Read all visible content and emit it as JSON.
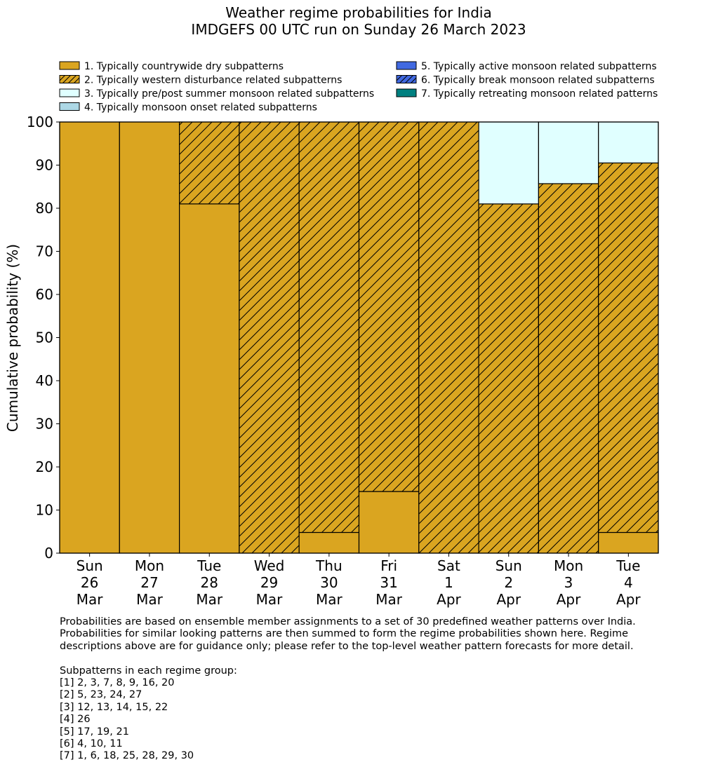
{
  "chart_data": {
    "type": "bar",
    "stacked": true,
    "title": "Weather regime probabilities for India",
    "subtitle": "IMDGEFS 00 UTC run on Sunday 26 March 2023",
    "ylabel": "Cumulative probability (%)",
    "xlabel": "",
    "ylim": [
      0,
      100
    ],
    "yticks": [
      0,
      10,
      20,
      30,
      40,
      50,
      60,
      70,
      80,
      90,
      100
    ],
    "categories": [
      [
        "Sun",
        "26",
        "Mar"
      ],
      [
        "Mon",
        "27",
        "Mar"
      ],
      [
        "Tue",
        "28",
        "Mar"
      ],
      [
        "Wed",
        "29",
        "Mar"
      ],
      [
        "Thu",
        "30",
        "Mar"
      ],
      [
        "Fri",
        "31",
        "Mar"
      ],
      [
        "Sat",
        "1",
        "Apr"
      ],
      [
        "Sun",
        "2",
        "Apr"
      ],
      [
        "Mon",
        "3",
        "Apr"
      ],
      [
        "Tue",
        "4",
        "Apr"
      ]
    ],
    "series": [
      {
        "name": "1. Typically countrywide dry subpatterns",
        "color": "#DAA520",
        "hatch": false,
        "values": [
          100,
          100,
          81,
          0,
          4.8,
          14.3,
          0,
          0,
          0,
          4.8
        ]
      },
      {
        "name": "2. Typically western disturbance related subpatterns",
        "color": "#DAA520",
        "hatch": true,
        "values": [
          0,
          0,
          19,
          100,
          95.2,
          85.7,
          100,
          81,
          85.7,
          85.7
        ]
      },
      {
        "name": "3. Typically pre/post summer monsoon related subpatterns",
        "color": "#E0FFFF",
        "hatch": false,
        "values": [
          0,
          0,
          0,
          0,
          0,
          0,
          0,
          19,
          14.3,
          9.5
        ]
      },
      {
        "name": "4. Typically monsoon onset related subpatterns",
        "color": "#ADD8E6",
        "hatch": false,
        "values": [
          0,
          0,
          0,
          0,
          0,
          0,
          0,
          0,
          0,
          0
        ]
      },
      {
        "name": "5. Typically active monsoon related subpatterns",
        "color": "#4169E1",
        "hatch": false,
        "values": [
          0,
          0,
          0,
          0,
          0,
          0,
          0,
          0,
          0,
          0
        ]
      },
      {
        "name": "6. Typically break monsoon related subpatterns",
        "color": "#4169E1",
        "hatch": true,
        "values": [
          0,
          0,
          0,
          0,
          0,
          0,
          0,
          0,
          0,
          0
        ]
      },
      {
        "name": "7. Typically retreating monsoon related patterns",
        "color": "#008080",
        "hatch": false,
        "values": [
          0,
          0,
          0,
          0,
          0,
          0,
          0,
          0,
          0,
          0
        ]
      }
    ],
    "legend_location": "top"
  },
  "notes": {
    "paragraph_lines": [
      "Probabilities are based on ensemble member assignments to a set of 30 predefined weather patterns over India.",
      "Probabilities for similar looking patterns are then summed to form the regime probabilities shown here. Regime",
      "descriptions above are for guidance only; please refer to the top-level weather pattern forecasts for more detail."
    ],
    "groups_heading": "Subpatterns in each regime group:",
    "groups": [
      "[1] 2, 3, 7, 8, 9, 16, 20",
      "[2] 5, 23, 24, 27",
      "[3] 12, 13, 14, 15, 22",
      "[4] 26",
      "[5] 17, 19, 21",
      "[6] 4, 10, 11",
      "[7] 1, 6, 18, 25, 28, 29, 30"
    ]
  }
}
